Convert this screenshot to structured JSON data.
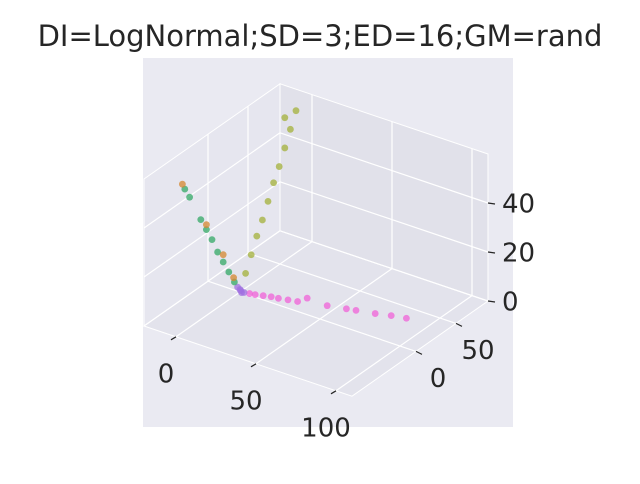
{
  "chart_data": {
    "type": "scatter3d",
    "title": "DI=LogNormal;SD=3;ED=16;GM=rand",
    "xlim": [
      -20,
      110
    ],
    "ylim": [
      -80,
      90
    ],
    "zlim": [
      0,
      60
    ],
    "xticks": [
      0,
      50,
      100
    ],
    "yticks": [
      0,
      50
    ],
    "zticks": [
      0,
      20,
      40
    ],
    "grid": true,
    "series": [
      {
        "color": "#f062d8",
        "x": [
          5,
          8,
          12,
          16,
          20,
          25,
          30,
          35,
          45,
          55,
          60,
          70,
          78,
          86
        ],
        "y": [
          2,
          3,
          5,
          7,
          8,
          10,
          12,
          14,
          19,
          23,
          25,
          29,
          33,
          36
        ],
        "z": [
          0,
          0,
          0,
          0,
          0,
          0,
          0,
          2,
          0,
          0,
          0,
          0,
          0,
          0
        ]
      },
      {
        "color": "#a070e0",
        "x": [
          0,
          1,
          2,
          -1,
          1
        ],
        "y": [
          0,
          0,
          1,
          -1,
          -1
        ],
        "z": [
          1,
          0,
          0,
          2,
          1
        ]
      },
      {
        "color": "#33a866",
        "x": [
          -1,
          -2,
          -3,
          -4,
          -5,
          -6,
          -7,
          -9,
          -10
        ],
        "y": [
          -5,
          -10,
          -15,
          -20,
          -25,
          -30,
          -35,
          -45,
          -49
        ],
        "z": [
          5,
          10,
          15,
          20,
          26,
          31,
          36,
          47,
          51
        ]
      },
      {
        "color": "#d4872f",
        "x": [
          -11,
          -6,
          -3,
          -1
        ],
        "y": [
          -50,
          -30,
          -15,
          -6
        ],
        "z": [
          53,
          33,
          18,
          7
        ]
      },
      {
        "color": "#a3b03a",
        "x": [
          0,
          0,
          0,
          0,
          0,
          0,
          0,
          0,
          0,
          0,
          -2
        ],
        "y": [
          7,
          14,
          21,
          28,
          35,
          42,
          49,
          56,
          63,
          70,
          60
        ],
        "z": [
          6,
          12,
          18,
          23,
          29,
          35,
          40,
          46,
          52,
          58,
          57
        ]
      }
    ]
  }
}
